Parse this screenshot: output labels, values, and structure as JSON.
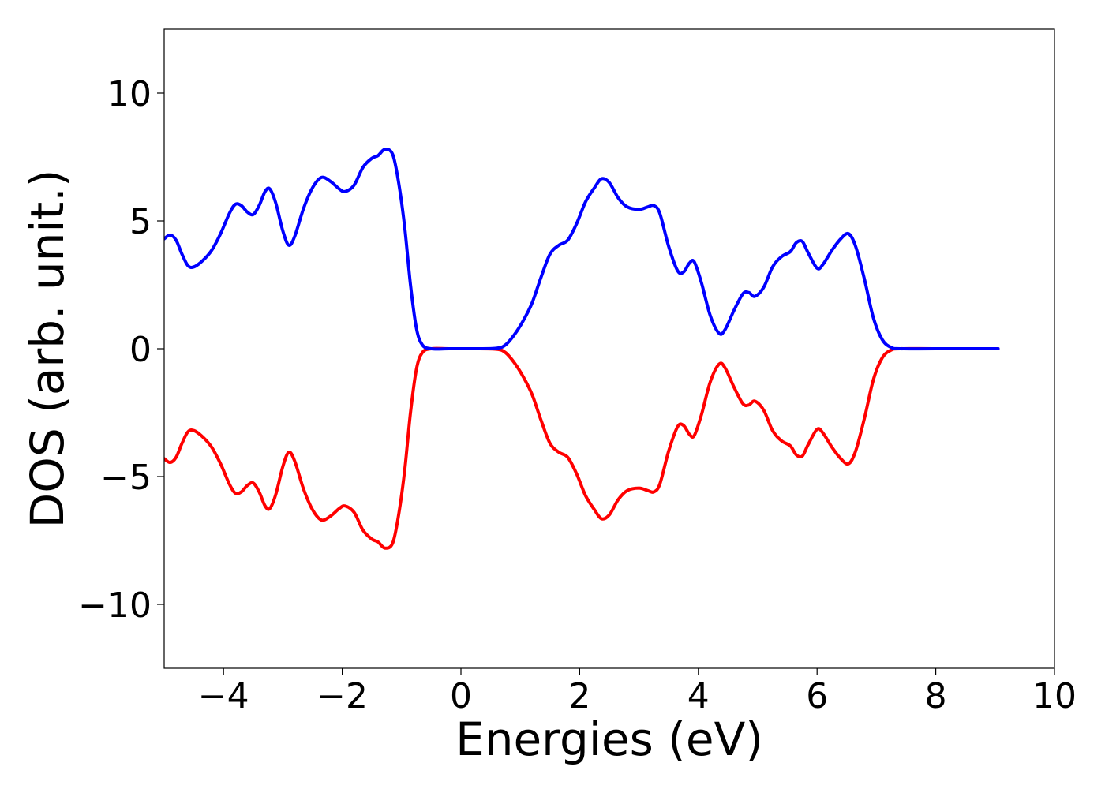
{
  "chart_data": {
    "type": "line",
    "title": "",
    "xlabel": "Energies (eV)",
    "ylabel": "DOS (arb. unit.)",
    "xlim": [
      -5,
      10
    ],
    "ylim": [
      -12.5,
      12.5
    ],
    "grid": false,
    "x_ticks": [
      -4,
      -2,
      0,
      2,
      4,
      6,
      8,
      10
    ],
    "x_tick_labels": [
      "−4",
      "−2",
      "0",
      "2",
      "4",
      "6",
      "8",
      "10"
    ],
    "y_ticks": [
      10,
      5,
      0,
      -5,
      -10
    ],
    "y_tick_labels": [
      "10",
      "5",
      "0",
      "−5",
      "−10"
    ],
    "series": [
      {
        "color": "#0000ff",
        "points": [
          [
            -5.0,
            4.3
          ],
          [
            -4.9,
            4.45
          ],
          [
            -4.8,
            4.25
          ],
          [
            -4.7,
            3.7
          ],
          [
            -4.6,
            3.25
          ],
          [
            -4.5,
            3.2
          ],
          [
            -4.35,
            3.45
          ],
          [
            -4.2,
            3.85
          ],
          [
            -4.05,
            4.5
          ],
          [
            -3.9,
            5.3
          ],
          [
            -3.8,
            5.65
          ],
          [
            -3.7,
            5.6
          ],
          [
            -3.6,
            5.35
          ],
          [
            -3.5,
            5.25
          ],
          [
            -3.4,
            5.6
          ],
          [
            -3.3,
            6.15
          ],
          [
            -3.22,
            6.25
          ],
          [
            -3.12,
            5.7
          ],
          [
            -3.0,
            4.6
          ],
          [
            -2.9,
            4.05
          ],
          [
            -2.8,
            4.4
          ],
          [
            -2.65,
            5.5
          ],
          [
            -2.5,
            6.3
          ],
          [
            -2.35,
            6.7
          ],
          [
            -2.2,
            6.55
          ],
          [
            -2.05,
            6.25
          ],
          [
            -1.95,
            6.15
          ],
          [
            -1.8,
            6.4
          ],
          [
            -1.65,
            7.1
          ],
          [
            -1.5,
            7.45
          ],
          [
            -1.4,
            7.55
          ],
          [
            -1.28,
            7.8
          ],
          [
            -1.15,
            7.6
          ],
          [
            -1.05,
            6.5
          ],
          [
            -0.95,
            4.8
          ],
          [
            -0.85,
            2.5
          ],
          [
            -0.75,
            0.8
          ],
          [
            -0.65,
            0.15
          ],
          [
            -0.5,
            0.0
          ],
          [
            -0.2,
            0.0
          ],
          [
            0.2,
            0.0
          ],
          [
            0.6,
            0.02
          ],
          [
            0.75,
            0.15
          ],
          [
            0.9,
            0.55
          ],
          [
            1.05,
            1.1
          ],
          [
            1.2,
            1.8
          ],
          [
            1.35,
            2.8
          ],
          [
            1.5,
            3.7
          ],
          [
            1.65,
            4.05
          ],
          [
            1.8,
            4.25
          ],
          [
            1.95,
            4.9
          ],
          [
            2.1,
            5.75
          ],
          [
            2.25,
            6.3
          ],
          [
            2.37,
            6.65
          ],
          [
            2.5,
            6.5
          ],
          [
            2.65,
            5.9
          ],
          [
            2.8,
            5.55
          ],
          [
            3.0,
            5.45
          ],
          [
            3.15,
            5.55
          ],
          [
            3.25,
            5.6
          ],
          [
            3.35,
            5.3
          ],
          [
            3.5,
            4.0
          ],
          [
            3.65,
            3.05
          ],
          [
            3.75,
            3.0
          ],
          [
            3.85,
            3.35
          ],
          [
            3.93,
            3.4
          ],
          [
            4.05,
            2.6
          ],
          [
            4.2,
            1.3
          ],
          [
            4.35,
            0.6
          ],
          [
            4.45,
            0.75
          ],
          [
            4.6,
            1.5
          ],
          [
            4.75,
            2.15
          ],
          [
            4.85,
            2.2
          ],
          [
            4.95,
            2.05
          ],
          [
            5.1,
            2.4
          ],
          [
            5.25,
            3.2
          ],
          [
            5.4,
            3.6
          ],
          [
            5.55,
            3.8
          ],
          [
            5.65,
            4.15
          ],
          [
            5.75,
            4.2
          ],
          [
            5.85,
            3.75
          ],
          [
            6.0,
            3.15
          ],
          [
            6.1,
            3.3
          ],
          [
            6.25,
            3.85
          ],
          [
            6.4,
            4.3
          ],
          [
            6.53,
            4.5
          ],
          [
            6.65,
            4.0
          ],
          [
            6.8,
            2.7
          ],
          [
            6.95,
            1.2
          ],
          [
            7.1,
            0.35
          ],
          [
            7.25,
            0.05
          ],
          [
            7.4,
            0.0
          ],
          [
            8.0,
            0.0
          ],
          [
            9.05,
            0.0
          ]
        ]
      },
      {
        "color": "#ff0000",
        "mirror_of_series": 0
      }
    ]
  }
}
